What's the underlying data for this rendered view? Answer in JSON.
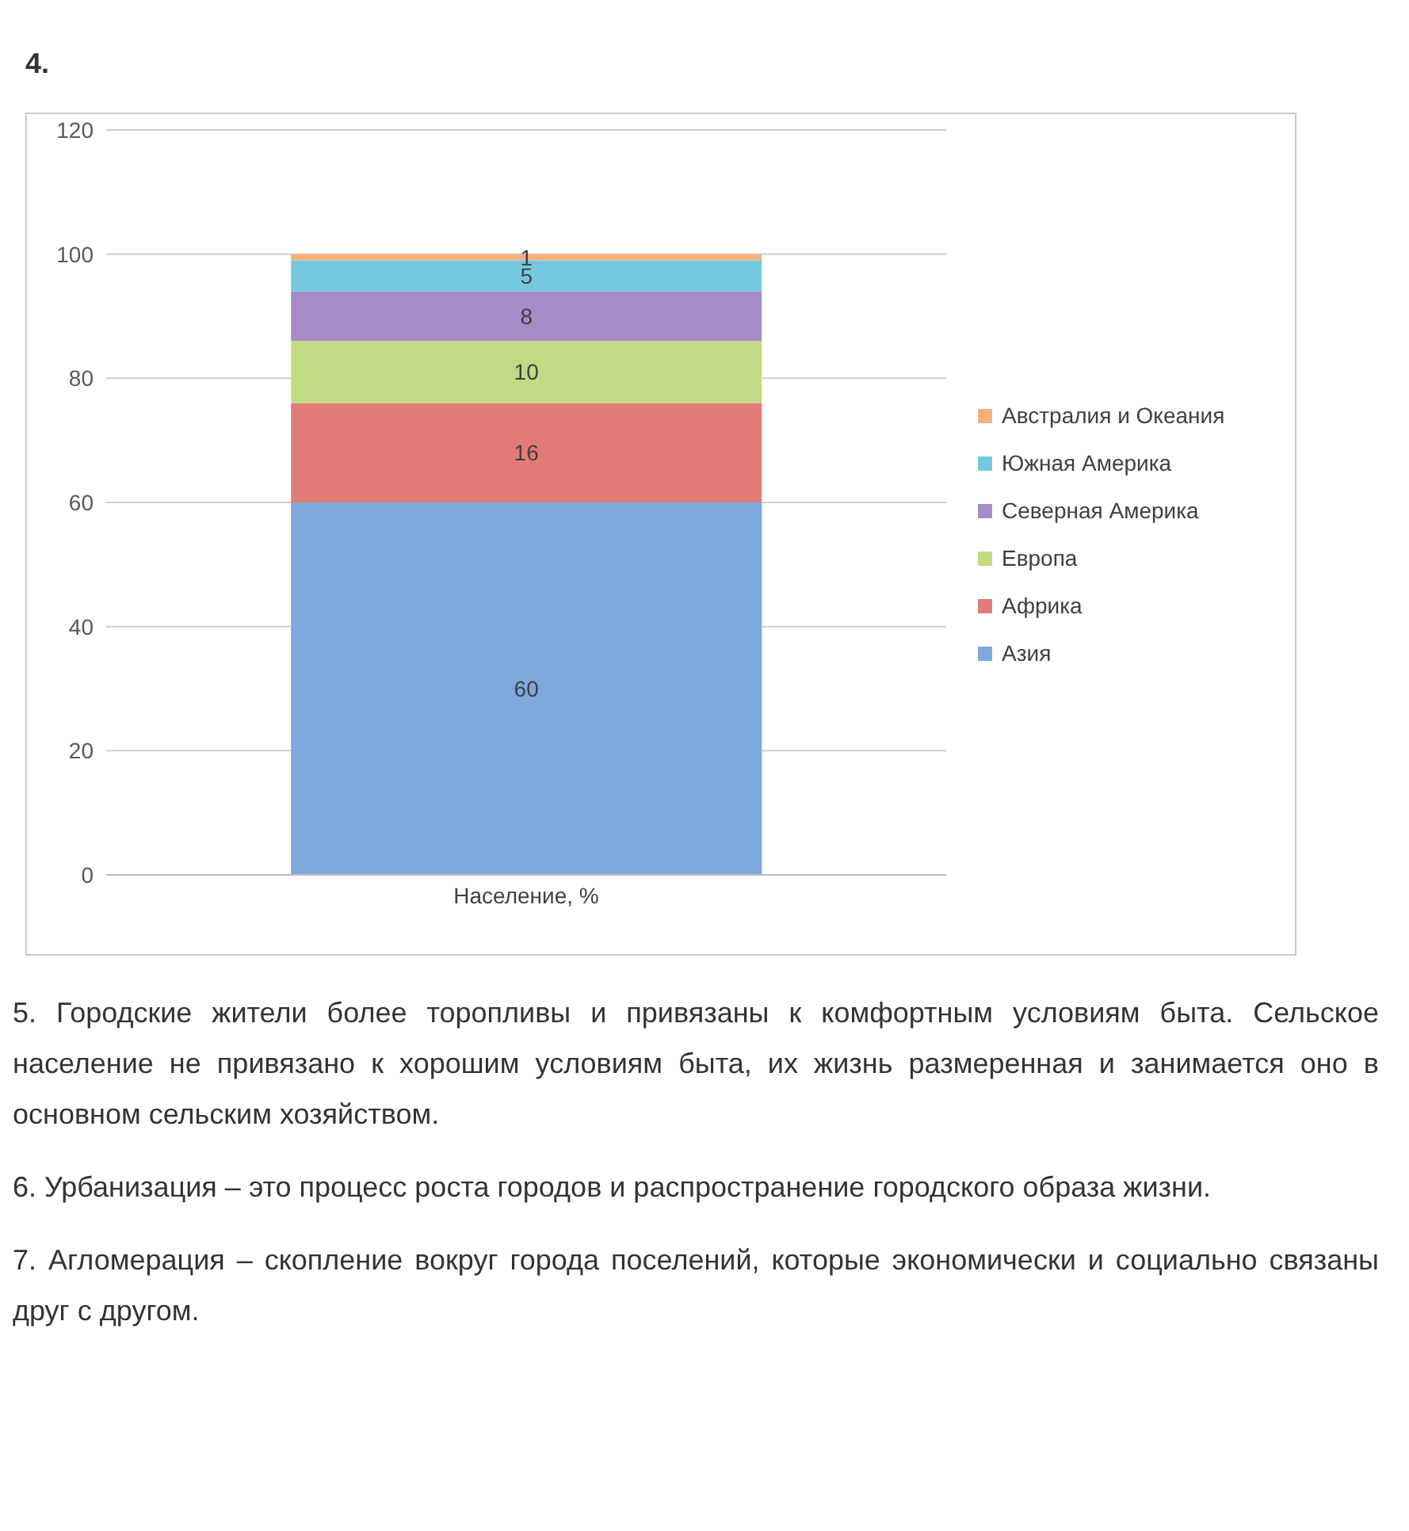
{
  "chart_data": {
    "type": "bar",
    "title": "4.",
    "stacked": true,
    "categories": [
      "Население, %"
    ],
    "series": [
      {
        "name": "Азия",
        "color": "#7ea7dc",
        "values": [
          60
        ]
      },
      {
        "name": "Африка",
        "color": "#e27b78",
        "values": [
          16
        ]
      },
      {
        "name": "Европа",
        "color": "#c3da84",
        "values": [
          10
        ]
      },
      {
        "name": "Северная Америка",
        "color": "#a68cc6",
        "values": [
          8
        ]
      },
      {
        "name": "Южная Америка",
        "color": "#74c9e0",
        "values": [
          5
        ]
      },
      {
        "name": "Австралия и Океания",
        "color": "#f5b07e",
        "values": [
          1
        ]
      }
    ],
    "ylim": [
      0,
      120
    ],
    "yticks": [
      0,
      20,
      40,
      60,
      80,
      100,
      120
    ],
    "grid": "y",
    "legend": "right",
    "data_labels": true,
    "annotations": [
      "5. Городские жители более торопливы и привязаны к комфортным условиям быта. Сельское население не привязано к хорошим условиям быта, их жизнь размеренная и занимается оно в основном сельским хозяйством.",
      "6. Урбанизация – это процесс роста городов и распространение городского образа жизни.",
      "7. Агломерация – скопление вокруг города поселений, которые экономически и социально связаны друг с другом."
    ]
  }
}
